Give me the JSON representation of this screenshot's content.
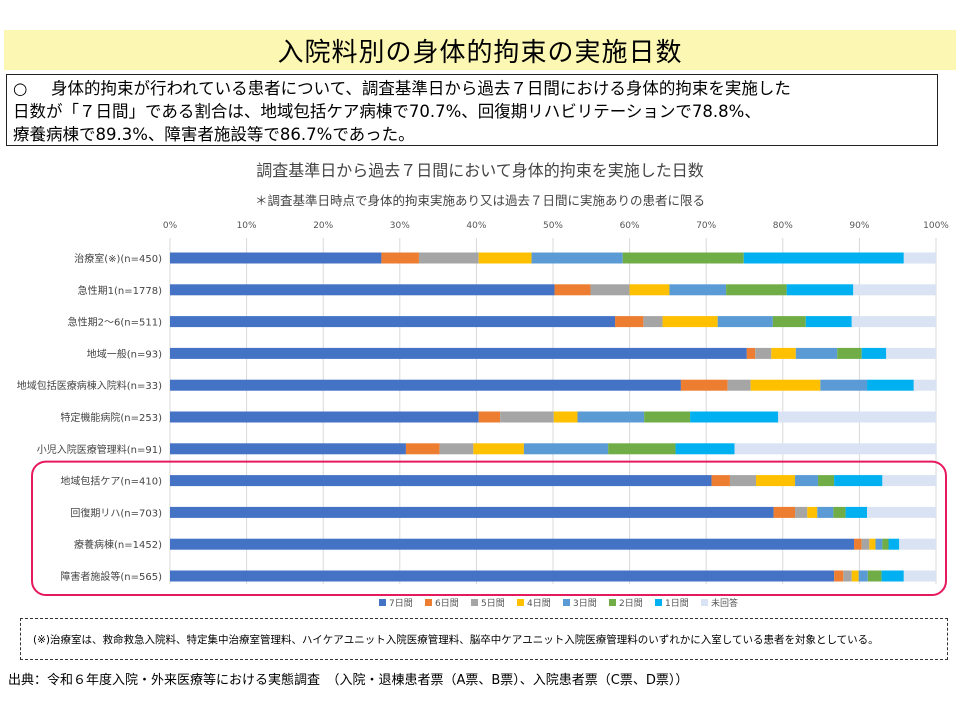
{
  "header": {
    "title": "入院料別の身体的拘束の実施日数"
  },
  "summary": {
    "bullet": "○",
    "lines": [
      "身体的拘束が行われている患者について、調査基準日から過去７日間における身体的拘束を実施した",
      "日数が「７日間」である割合は、地域包括ケア病棟で70.7%、回復期リハビリテーションで78.8%、",
      "療養病棟で89.3%、障害者施設等で86.7%であった。"
    ]
  },
  "chart_data": {
    "type": "bar",
    "orientation": "horizontal-stacked-100",
    "title": "調査基準日から過去７日間において身体的拘束を実施した日数",
    "subtitle": "＊調査基準日時点で身体的拘束実施あり又は過去７日間に実施ありの患者に限る",
    "xticks": [
      "0%",
      "10%",
      "20%",
      "30%",
      "40%",
      "50%",
      "60%",
      "70%",
      "80%",
      "90%",
      "100%"
    ],
    "xlim": [
      0,
      100
    ],
    "grid": true,
    "legend_position": "bottom",
    "categories": [
      "治療室(※)(n=450)",
      "急性期1(n=1778)",
      "急性期2～6(n=511)",
      "地域一般(n=93)",
      "地域包括医療病棟入院料(n=33)",
      "特定機能病院(n=253)",
      "小児入院医療管理料(n=91)",
      "地域包括ケア(n=410)",
      "回復期リハ(n=703)",
      "療養病棟(n=1452)",
      "障害者施設等(n=565)"
    ],
    "highlighted_categories": [
      "地域包括ケア(n=410)",
      "回復期リハ(n=703)",
      "療養病棟(n=1452)",
      "障害者施設等(n=565)"
    ],
    "series": [
      {
        "name": "7日間",
        "color": "#4472c4",
        "values": [
          27.6,
          50.2,
          58.1,
          75.3,
          66.7,
          40.3,
          30.8,
          70.7,
          78.8,
          89.3,
          86.7
        ]
      },
      {
        "name": "6日間",
        "color": "#ed7d31",
        "values": [
          4.9,
          4.7,
          3.7,
          1.1,
          6.1,
          2.8,
          4.4,
          2.4,
          2.8,
          1.0,
          1.2
        ]
      },
      {
        "name": "5日間",
        "color": "#a5a5a5",
        "values": [
          7.8,
          5.1,
          2.5,
          2.1,
          3.0,
          7.0,
          4.4,
          3.4,
          1.6,
          1.0,
          1.1
        ]
      },
      {
        "name": "4日間",
        "color": "#ffc000",
        "values": [
          6.9,
          5.2,
          7.2,
          3.2,
          9.1,
          3.1,
          6.6,
          5.1,
          1.3,
          0.8,
          0.9
        ]
      },
      {
        "name": "3日間",
        "color": "#5b9bd5",
        "values": [
          11.9,
          7.4,
          7.2,
          5.4,
          6.1,
          8.7,
          11.0,
          3.0,
          2.1,
          0.9,
          1.2
        ]
      },
      {
        "name": "2日間",
        "color": "#70ad47",
        "values": [
          15.8,
          7.9,
          4.3,
          3.2,
          0.0,
          6.0,
          8.8,
          2.1,
          1.6,
          0.8,
          1.8
        ]
      },
      {
        "name": "1日間",
        "color": "#00b0f0",
        "values": [
          20.9,
          8.7,
          6.0,
          3.2,
          6.1,
          11.5,
          7.7,
          6.3,
          2.8,
          1.4,
          2.9
        ]
      },
      {
        "name": "未回答",
        "color": "#dae3f3",
        "values": [
          4.2,
          10.8,
          11.0,
          6.5,
          3.0,
          20.6,
          26.4,
          7.1,
          9.0,
          4.8,
          4.2
        ]
      }
    ]
  },
  "footnote": "(※)治療室は、救命救急入院料、特定集中治療室管理料、ハイケアユニット入院医療管理料、脳卒中ケアユニット入院医療管理料のいずれかに入室している患者を対象としている。",
  "source": "出典：令和６年度入院・外来医療等における実態調査　（入院・退棟患者票（A票、B票）、入院患者票（C票、D票））",
  "colors": {
    "highlight_box": "#e6195f",
    "title_bg": "#fdf7b4",
    "grid": "#d9d9d9"
  }
}
